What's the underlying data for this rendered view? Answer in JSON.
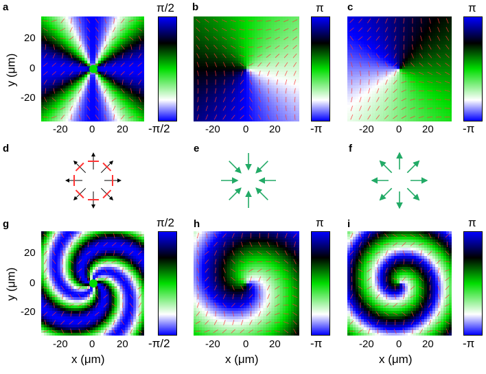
{
  "panels": {
    "a": {
      "letter": "a",
      "cb_top": "π/2",
      "cb_bottom": "-π/2"
    },
    "b": {
      "letter": "b",
      "cb_top": "π",
      "cb_bottom": "-π"
    },
    "c": {
      "letter": "c",
      "cb_top": "π",
      "cb_bottom": "-π"
    },
    "d": {
      "letter": "d"
    },
    "e": {
      "letter": "e"
    },
    "f": {
      "letter": "f"
    },
    "g": {
      "letter": "g",
      "cb_top": "π/2",
      "cb_bottom": "-π/2"
    },
    "h": {
      "letter": "h",
      "cb_top": "π",
      "cb_bottom": "-π"
    },
    "i": {
      "letter": "i",
      "cb_top": "π",
      "cb_bottom": "-π"
    }
  },
  "axes": {
    "y_title": "y (μm)",
    "x_title": "x (μm)",
    "y_ticks": [
      "20",
      "0",
      "-20"
    ],
    "x_ticks": [
      "-20",
      "0",
      "20"
    ]
  },
  "colors": {
    "blue": "#0000ff",
    "green": "#00dd00",
    "black": "#000000",
    "white": "#ffffff",
    "arrow_red": "#ff3333",
    "arrow_green": "#22aa66"
  }
}
